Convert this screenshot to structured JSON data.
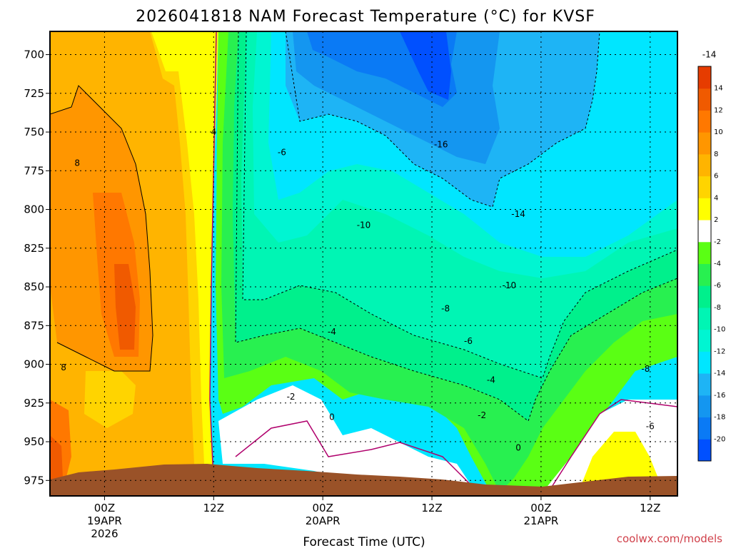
{
  "title": "2026041818 NAM Forecast Temperature (°C) for KVSF",
  "watermark": "coolwx.com/models",
  "chart_data": {
    "type": "contour",
    "title": "2026041818 NAM Forecast Temperature (°C) for KVSF",
    "xlabel": "Forecast Time (UTC)",
    "ylabel": "Pressure (hPa)",
    "y_ticks": [
      700,
      725,
      750,
      775,
      800,
      825,
      850,
      875,
      900,
      925,
      950,
      975
    ],
    "ylim": [
      685,
      985
    ],
    "x_range_hours": [
      -6,
      63
    ],
    "x_ticks": [
      {
        "hour": 0,
        "lines": [
          "00Z",
          "19APR",
          "2026"
        ]
      },
      {
        "hour": 12,
        "lines": [
          "12Z"
        ]
      },
      {
        "hour": 24,
        "lines": [
          "00Z",
          "20APR"
        ]
      },
      {
        "hour": 36,
        "lines": [
          "12Z"
        ]
      },
      {
        "hour": 48,
        "lines": [
          "00Z",
          "21APR"
        ]
      },
      {
        "hour": 60,
        "lines": [
          "12Z"
        ]
      },
      {
        "hour": 72,
        "lines": [
          "00Z",
          "22APR"
        ]
      }
    ],
    "colorbar": {
      "levels": [
        -22,
        -20,
        -18,
        -16,
        -14,
        -12,
        -10,
        -8,
        -6,
        -4,
        -2,
        2,
        4,
        6,
        8,
        10,
        12,
        14,
        16
      ],
      "labels": [
        "-20",
        "-18",
        "-16",
        "-14",
        "-12",
        "-10",
        "-8",
        "-6",
        "-4",
        "-2",
        "2",
        "4",
        "6",
        "8",
        "10",
        "12",
        "14"
      ],
      "colors": [
        "#0050ff",
        "#0a7af5",
        "#1496f0",
        "#1eb4f5",
        "#00e6ff",
        "#00f5d2",
        "#00f5b4",
        "#00f08c",
        "#28f050",
        "#5aff14",
        "#ffffff",
        "#ffff00",
        "#ffd400",
        "#ffb400",
        "#ff9600",
        "#ff7800",
        "#f05a00",
        "#e63c00"
      ]
    },
    "contour_labels": [
      {
        "text": "-14",
        "hour": 66.5,
        "p": 700
      },
      {
        "text": "4",
        "hour": 12,
        "p": 750
      },
      {
        "text": "-6",
        "hour": 19.5,
        "p": 763
      },
      {
        "text": "-16",
        "hour": 37,
        "p": 758
      },
      {
        "text": "8",
        "hour": -3,
        "p": 770
      },
      {
        "text": "-14",
        "hour": 45.5,
        "p": 803
      },
      {
        "text": "-10",
        "hour": 28.5,
        "p": 810
      },
      {
        "text": "-10",
        "hour": 44.5,
        "p": 849
      },
      {
        "text": "-8",
        "hour": 37.5,
        "p": 864
      },
      {
        "text": "-4",
        "hour": 25,
        "p": 879
      },
      {
        "text": "-6",
        "hour": 40,
        "p": 885
      },
      {
        "text": "8",
        "hour": -4.5,
        "p": 902
      },
      {
        "text": "-8",
        "hour": 59.5,
        "p": 903
      },
      {
        "text": "-4",
        "hour": 42.5,
        "p": 910
      },
      {
        "text": "-2",
        "hour": 20.5,
        "p": 921
      },
      {
        "text": "0",
        "hour": 25,
        "p": 934
      },
      {
        "text": "-2",
        "hour": 41.5,
        "p": 933
      },
      {
        "text": "-6",
        "hour": 60,
        "p": 940
      },
      {
        "text": "0",
        "hour": 45.5,
        "p": 954
      }
    ]
  }
}
